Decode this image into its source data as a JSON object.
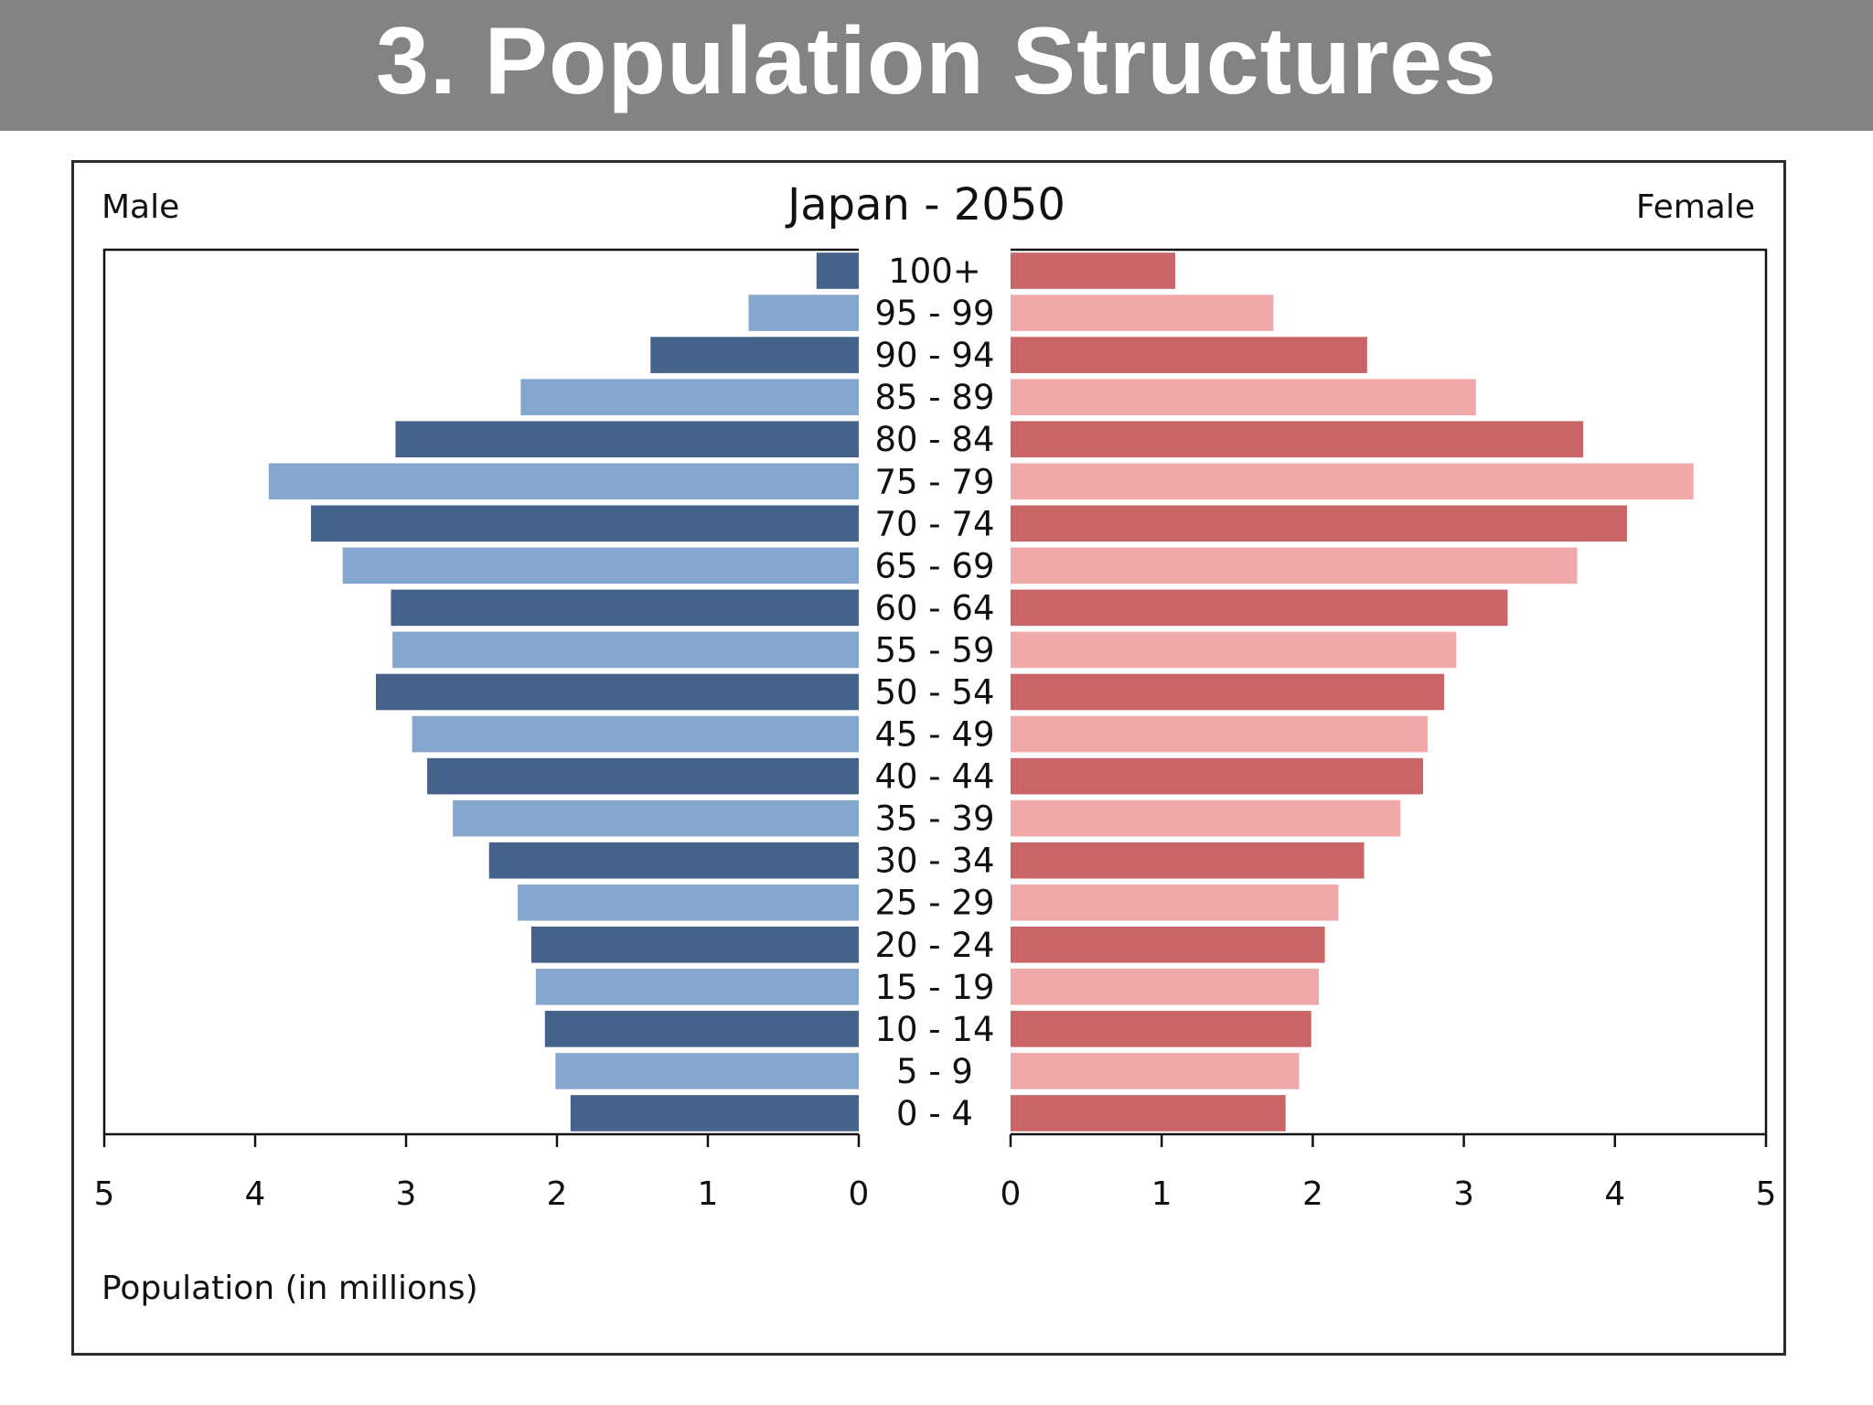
{
  "slide": {
    "title": "3. Population Structures"
  },
  "chart_data": {
    "type": "bar",
    "orientation": "horizontal",
    "layout": "population-pyramid",
    "title": "Japan - 2050",
    "left_label": "Male",
    "right_label": "Female",
    "xlabel": "Population (in millions)",
    "xlim": [
      0,
      5
    ],
    "x_ticks": [
      "0",
      "1",
      "2",
      "3",
      "4",
      "5"
    ],
    "categories": [
      "100+",
      "95 - 99",
      "90 - 94",
      "85 - 89",
      "80 - 84",
      "75 - 79",
      "70 - 74",
      "65 - 69",
      "60 - 64",
      "55 - 59",
      "50 - 54",
      "45 - 49",
      "40 - 44",
      "35 - 39",
      "30 - 34",
      "25 - 29",
      "20 - 24",
      "15 - 19",
      "10 - 14",
      "5 - 9",
      "0 - 4"
    ],
    "series": [
      {
        "name": "Male",
        "values": [
          0.28,
          0.73,
          1.38,
          2.24,
          3.07,
          3.91,
          3.63,
          3.42,
          3.1,
          3.09,
          3.2,
          2.96,
          2.86,
          2.69,
          2.45,
          2.26,
          2.17,
          2.14,
          2.08,
          2.01,
          1.91
        ],
        "colors": [
          "#44628a",
          "#85a7ce"
        ]
      },
      {
        "name": "Female",
        "values": [
          1.09,
          1.74,
          2.36,
          3.08,
          3.79,
          4.52,
          4.08,
          3.75,
          3.29,
          2.95,
          2.87,
          2.76,
          2.73,
          2.58,
          2.34,
          2.17,
          2.08,
          2.04,
          1.99,
          1.91,
          1.82
        ],
        "colors": [
          "#c96566",
          "#f0a8a9"
        ]
      }
    ],
    "grid": false
  }
}
